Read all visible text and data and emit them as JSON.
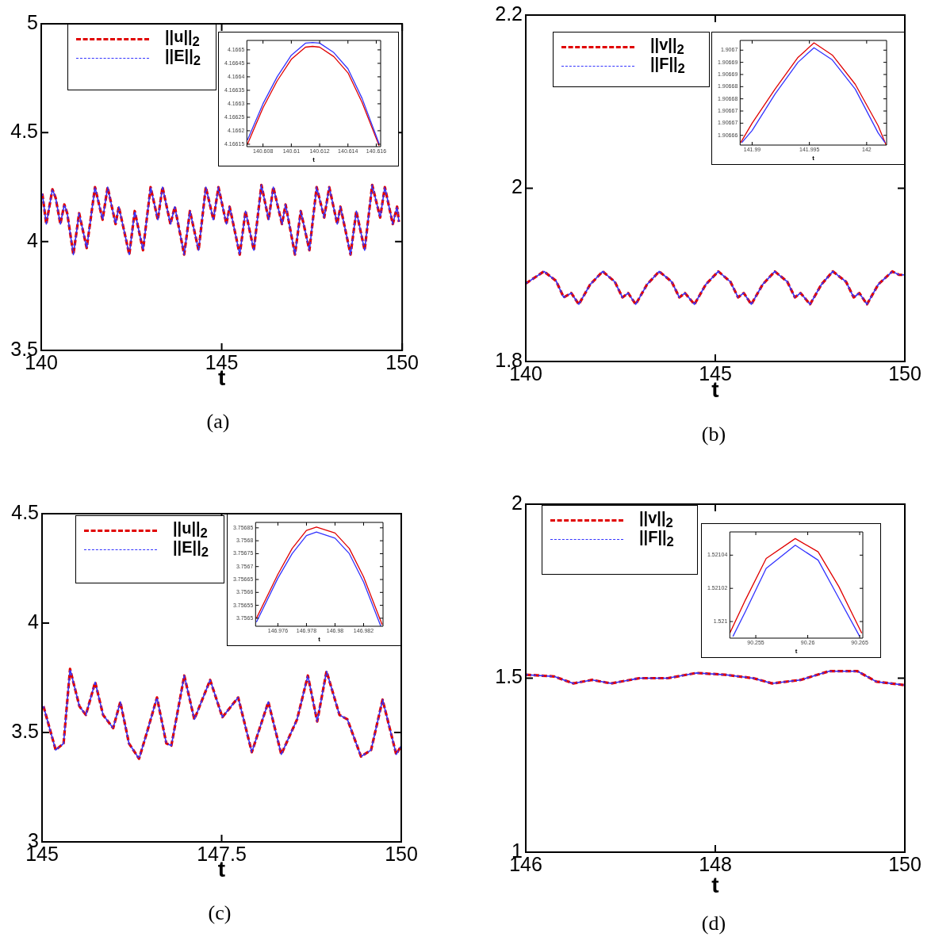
{
  "chart_data": [
    {
      "type": "line",
      "xlabel": "t",
      "annotations": [
        "(a)"
      ],
      "xlim": [
        140,
        150
      ],
      "ylim": [
        3.5,
        5
      ],
      "xticks": [
        140,
        145,
        150
      ],
      "yticks": [
        3.5,
        4,
        4.5,
        5
      ],
      "legend": "top left",
      "marker": "none",
      "series": [
        {
          "name": "||u||$_{2}$",
          "color": "#e00000",
          "line_style": "dashed",
          "x": [
            140.03,
            140.14,
            140.31,
            140.4,
            140.53,
            140.64,
            140.72,
            140.89,
            141.05,
            141.26,
            141.49,
            141.7,
            141.84,
            142.06,
            142.15,
            142.44,
            142.59,
            142.82,
            143.03,
            143.23,
            143.36,
            143.58,
            143.7,
            143.96,
            144.12,
            144.36,
            144.56,
            144.77,
            144.91,
            145.13,
            145.22,
            145.5,
            145.66,
            145.89,
            146.1,
            146.3,
            146.43,
            146.67,
            146.77,
            147.03,
            147.19,
            147.43,
            147.63,
            147.84,
            147.98,
            148.2,
            148.29,
            148.57,
            148.73,
            148.96,
            149.17,
            149.39,
            149.52,
            149.74,
            149.86,
            149.91
          ],
          "values": [
            4.22,
            4.08,
            4.24,
            4.2,
            4.08,
            4.17,
            4.13,
            3.94,
            4.13,
            3.97,
            4.25,
            4.1,
            4.25,
            4.08,
            4.16,
            3.94,
            4.14,
            3.96,
            4.25,
            4.1,
            4.25,
            4.08,
            4.16,
            3.94,
            4.14,
            3.96,
            4.25,
            4.1,
            4.25,
            4.08,
            4.16,
            3.94,
            4.14,
            3.96,
            4.26,
            4.1,
            4.25,
            4.08,
            4.17,
            3.94,
            4.14,
            3.96,
            4.25,
            4.11,
            4.25,
            4.08,
            4.16,
            3.94,
            4.14,
            3.96,
            4.26,
            4.11,
            4.25,
            4.08,
            4.16,
            4.09
          ]
        },
        {
          "name": "||E||$_{2}$",
          "color": "#3333ff",
          "line_style": "dashed",
          "x": [
            140.03,
            140.14,
            140.31,
            140.4,
            140.53,
            140.64,
            140.72,
            140.89,
            141.05,
            141.26,
            141.49,
            141.7,
            141.84,
            142.06,
            142.15,
            142.44,
            142.59,
            142.82,
            143.03,
            143.23,
            143.36,
            143.58,
            143.7,
            143.96,
            144.12,
            144.36,
            144.56,
            144.77,
            144.91,
            145.13,
            145.22,
            145.5,
            145.66,
            145.89,
            146.1,
            146.3,
            146.43,
            146.67,
            146.77,
            147.03,
            147.19,
            147.43,
            147.63,
            147.84,
            147.98,
            148.2,
            148.29,
            148.57,
            148.73,
            148.96,
            149.17,
            149.39,
            149.52,
            149.74,
            149.86,
            149.91
          ],
          "values": [
            4.22,
            4.08,
            4.24,
            4.2,
            4.08,
            4.17,
            4.13,
            3.94,
            4.13,
            3.97,
            4.25,
            4.1,
            4.25,
            4.08,
            4.16,
            3.94,
            4.14,
            3.96,
            4.25,
            4.1,
            4.25,
            4.08,
            4.16,
            3.94,
            4.14,
            3.96,
            4.25,
            4.1,
            4.25,
            4.08,
            4.16,
            3.94,
            4.14,
            3.96,
            4.26,
            4.1,
            4.25,
            4.08,
            4.17,
            3.94,
            4.14,
            3.96,
            4.25,
            4.11,
            4.25,
            4.08,
            4.16,
            3.94,
            4.14,
            3.96,
            4.26,
            4.11,
            4.25,
            4.08,
            4.16,
            4.09
          ]
        }
      ]
    },
    {
      "type": "line",
      "xlabel": "t",
      "xlim": [
        140.60686,
        140.61631
      ],
      "ylim": [
        4.166141,
        4.166535
      ],
      "xticks": [
        140.608,
        140.61,
        140.612,
        140.614,
        140.616
      ],
      "yticks": [
        4.16615,
        4.1662,
        4.16625,
        4.1663,
        4.16635,
        4.1664,
        4.16645,
        4.1665
      ],
      "marker": "none",
      "series": [
        {
          "color": "#e00000",
          "x": [
            140.6069,
            140.608,
            140.609,
            140.61,
            140.611,
            140.6115,
            140.612,
            140.613,
            140.614,
            140.615,
            140.6162
          ],
          "values": [
            4.16615,
            4.166285,
            4.166385,
            4.166465,
            4.16651,
            4.166513,
            4.16651,
            4.166475,
            4.166415,
            4.166305,
            4.166145
          ]
        },
        {
          "color": "#3333ff",
          "x": [
            140.6069,
            140.608,
            140.609,
            140.61,
            140.611,
            140.6115,
            140.612,
            140.613,
            140.614,
            140.615,
            140.6162
          ],
          "values": [
            4.166165,
            4.1663,
            4.1664,
            4.16648,
            4.166525,
            4.166527,
            4.166525,
            4.16649,
            4.16643,
            4.16632,
            4.166152
          ]
        }
      ]
    },
    {
      "type": "line",
      "xlabel": "t",
      "annotations": [
        "(b)"
      ],
      "xlim": [
        140,
        150
      ],
      "ylim": [
        1.8,
        2.2
      ],
      "xticks": [
        140,
        145,
        150
      ],
      "yticks": [
        1.8,
        2,
        2.2
      ],
      "legend": "top left",
      "marker": "none",
      "series": [
        {
          "name": "||v||$_{2}$",
          "color": "#e00000",
          "line_style": "dashed",
          "x": [
            140.0,
            140.48,
            140.8,
            141.0,
            141.2,
            141.4,
            141.7,
            142.03,
            142.35,
            142.55,
            142.7,
            142.9,
            143.2,
            143.52,
            143.85,
            144.05,
            144.2,
            144.45,
            144.75,
            145.08,
            145.4,
            145.6,
            145.75,
            145.95,
            146.25,
            146.57,
            146.9,
            147.1,
            147.25,
            147.5,
            147.8,
            148.1,
            148.45,
            148.65,
            148.8,
            149.0,
            149.3,
            149.67,
            149.85,
            150.0
          ],
          "values": [
            1.89,
            1.904,
            1.893,
            1.874,
            1.879,
            1.866,
            1.889,
            1.904,
            1.892,
            1.874,
            1.879,
            1.866,
            1.889,
            1.904,
            1.892,
            1.874,
            1.879,
            1.866,
            1.889,
            1.904,
            1.892,
            1.874,
            1.879,
            1.866,
            1.889,
            1.904,
            1.892,
            1.874,
            1.879,
            1.866,
            1.889,
            1.904,
            1.892,
            1.874,
            1.879,
            1.866,
            1.889,
            1.904,
            1.9,
            1.9
          ]
        },
        {
          "name": "||F||$_{2}$",
          "color": "#3333ff",
          "line_style": "dashed",
          "x": [
            140.0,
            140.48,
            140.8,
            141.0,
            141.2,
            141.4,
            141.7,
            142.03,
            142.35,
            142.55,
            142.7,
            142.9,
            143.2,
            143.52,
            143.85,
            144.05,
            144.2,
            144.45,
            144.75,
            145.08,
            145.4,
            145.6,
            145.75,
            145.95,
            146.25,
            146.57,
            146.9,
            147.1,
            147.25,
            147.5,
            147.8,
            148.1,
            148.45,
            148.65,
            148.8,
            149.0,
            149.3,
            149.67,
            149.85,
            150.0
          ],
          "values": [
            1.89,
            1.904,
            1.893,
            1.874,
            1.879,
            1.866,
            1.889,
            1.904,
            1.892,
            1.874,
            1.879,
            1.866,
            1.889,
            1.904,
            1.892,
            1.874,
            1.879,
            1.866,
            1.889,
            1.904,
            1.892,
            1.874,
            1.879,
            1.866,
            1.889,
            1.904,
            1.892,
            1.874,
            1.879,
            1.866,
            1.889,
            1.904,
            1.892,
            1.874,
            1.879,
            1.866,
            1.889,
            1.904,
            1.9,
            1.9
          ]
        }
      ]
    },
    {
      "type": "line",
      "xlabel": "t",
      "xlim": [
        141.98895,
        142.00174
      ],
      "ylim": [
        1.906661,
        1.906704
      ],
      "xticks": [
        141.99,
        141.995,
        142
      ],
      "yticks": [
        {
          "value": 1.906665,
          "label": "1.90666"
        },
        {
          "value": 1.90667,
          "label": "1.90667"
        },
        {
          "value": 1.906675,
          "label": "1.90667"
        },
        {
          "value": 1.90668,
          "label": "1.90668"
        },
        {
          "value": 1.906685,
          "label": "1.90668"
        },
        {
          "value": 1.90669,
          "label": "1.90669"
        },
        {
          "value": 1.906695,
          "label": "1.90669"
        },
        {
          "value": 1.9067,
          "label": "1.9067"
        }
      ],
      "marker": "none",
      "series": [
        {
          "color": "#e00000",
          "x": [
            141.989,
            141.99,
            141.992,
            141.994,
            141.9954,
            141.997,
            141.999,
            142.001,
            142.0017
          ],
          "values": [
            1.906662,
            1.90667,
            1.906684,
            1.906697,
            1.906703,
            1.906698,
            1.906686,
            1.906669,
            1.906661
          ]
        },
        {
          "color": "#3333ff",
          "x": [
            141.9891,
            141.99,
            141.992,
            141.994,
            141.9954,
            141.997,
            141.999,
            142.001,
            142.0016
          ],
          "values": [
            1.906662,
            1.906667,
            1.906682,
            1.906695,
            1.906701,
            1.906696,
            1.906684,
            1.906666,
            1.906662
          ]
        }
      ]
    },
    {
      "type": "line",
      "xlabel": "t",
      "annotations": [
        "(c)"
      ],
      "xlim": [
        145,
        150
      ],
      "ylim": [
        3,
        4.5
      ],
      "xticks": [
        145,
        147.5,
        150
      ],
      "yticks": [
        3,
        3.5,
        4,
        4.5
      ],
      "legend": "top left",
      "marker": "none",
      "series": [
        {
          "name": "||u||$_{2}$",
          "color": "#e00000",
          "line_style": "dashed",
          "x": [
            145.02,
            145.19,
            145.3,
            145.39,
            145.52,
            145.61,
            145.74,
            145.85,
            145.99,
            146.09,
            146.21,
            146.35,
            146.46,
            146.6,
            146.73,
            146.8,
            146.98,
            147.12,
            147.34,
            147.51,
            147.73,
            147.92,
            148.15,
            148.33,
            148.55,
            148.7,
            148.83,
            148.96,
            149.14,
            149.25,
            149.44,
            149.58,
            149.74,
            149.93,
            150.0
          ],
          "values": [
            3.62,
            3.42,
            3.45,
            3.79,
            3.62,
            3.58,
            3.73,
            3.58,
            3.52,
            3.64,
            3.45,
            3.38,
            3.5,
            3.66,
            3.45,
            3.44,
            3.76,
            3.56,
            3.74,
            3.57,
            3.66,
            3.41,
            3.64,
            3.4,
            3.56,
            3.76,
            3.55,
            3.78,
            3.58,
            3.56,
            3.39,
            3.42,
            3.65,
            3.4,
            3.44
          ]
        },
        {
          "name": "||E||$_{2}$",
          "color": "#3333ff",
          "line_style": "dashed",
          "x": [
            145.02,
            145.19,
            145.3,
            145.39,
            145.52,
            145.61,
            145.74,
            145.85,
            145.99,
            146.09,
            146.21,
            146.35,
            146.46,
            146.6,
            146.73,
            146.8,
            146.98,
            147.12,
            147.34,
            147.51,
            147.73,
            147.92,
            148.15,
            148.33,
            148.55,
            148.7,
            148.83,
            148.96,
            149.14,
            149.25,
            149.44,
            149.58,
            149.74,
            149.93,
            150.0
          ],
          "values": [
            3.62,
            3.42,
            3.45,
            3.79,
            3.62,
            3.58,
            3.73,
            3.58,
            3.52,
            3.64,
            3.45,
            3.38,
            3.5,
            3.66,
            3.45,
            3.44,
            3.76,
            3.56,
            3.74,
            3.57,
            3.66,
            3.41,
            3.64,
            3.4,
            3.56,
            3.76,
            3.55,
            3.78,
            3.58,
            3.56,
            3.39,
            3.42,
            3.65,
            3.4,
            3.44
          ]
        }
      ]
    },
    {
      "type": "line",
      "xlabel": "t",
      "xlim": [
        146.97444,
        146.98336
      ],
      "ylim": [
        3.756469,
        3.756871
      ],
      "xticks": [
        146.976,
        146.978,
        146.98,
        146.982
      ],
      "yticks": [
        3.7565,
        3.75655,
        3.7566,
        3.75665,
        3.7567,
        3.75675,
        3.7568,
        3.75685
      ],
      "marker": "none",
      "series": [
        {
          "color": "#e00000",
          "x": [
            146.9745,
            146.976,
            146.977,
            146.978,
            146.9787,
            146.98,
            146.981,
            146.982,
            146.9833
          ],
          "values": [
            3.7565,
            3.75667,
            3.75677,
            3.75684,
            3.756853,
            3.75683,
            3.75677,
            3.75666,
            3.756475
          ]
        },
        {
          "color": "#3333ff",
          "x": [
            146.9745,
            146.976,
            146.977,
            146.978,
            146.9787,
            146.98,
            146.981,
            146.982,
            146.9832
          ],
          "values": [
            3.756485,
            3.756655,
            3.75675,
            3.75682,
            3.756834,
            3.75681,
            3.75675,
            3.75664,
            3.75647
          ]
        }
      ]
    },
    {
      "type": "line",
      "xlabel": "t",
      "annotations": [
        "(d)"
      ],
      "xlim": [
        146,
        150
      ],
      "ylim": [
        1,
        2
      ],
      "xticks": [
        146,
        148,
        150
      ],
      "yticks": [
        1,
        1.5,
        2
      ],
      "legend": "top left",
      "marker": "none",
      "series": [
        {
          "name": "||v||$_{2}$",
          "color": "#e00000",
          "line_style": "dashed",
          "x": [
            146.0,
            146.3,
            146.5,
            146.7,
            146.9,
            147.2,
            147.5,
            147.8,
            148.1,
            148.4,
            148.6,
            148.9,
            149.2,
            149.5,
            149.7,
            150.0
          ],
          "values": [
            1.51,
            1.505,
            1.485,
            1.495,
            1.485,
            1.5,
            1.5,
            1.515,
            1.51,
            1.5,
            1.485,
            1.495,
            1.52,
            1.52,
            1.49,
            1.48
          ]
        },
        {
          "name": "||F||$_{2}$",
          "color": "#3333ff",
          "line_style": "dashed",
          "x": [
            146.0,
            146.3,
            146.5,
            146.7,
            146.9,
            147.2,
            147.5,
            147.8,
            148.1,
            148.4,
            148.6,
            148.9,
            149.2,
            149.5,
            149.7,
            150.0
          ],
          "values": [
            1.51,
            1.505,
            1.485,
            1.495,
            1.485,
            1.5,
            1.5,
            1.515,
            1.51,
            1.5,
            1.485,
            1.495,
            1.52,
            1.52,
            1.49,
            1.48
          ]
        }
      ]
    },
    {
      "type": "line",
      "xlabel": "t",
      "xlim": [
        90.2525,
        90.2653
      ],
      "ylim": [
        1.52099,
        1.521054
      ],
      "xticks": [
        90.255,
        90.26,
        90.265
      ],
      "yticks": [
        1.521,
        1.52102,
        1.52104
      ],
      "marker": "none",
      "series": [
        {
          "color": "#e00000",
          "x": [
            90.2525,
            90.254,
            90.256,
            90.2588,
            90.261,
            90.263,
            90.2652
          ],
          "values": [
            1.520993,
            1.521013,
            1.521038,
            1.52105,
            1.521042,
            1.521021,
            1.520993
          ]
        },
        {
          "color": "#3333ff",
          "x": [
            90.2528,
            90.254,
            90.256,
            90.2588,
            90.261,
            90.263,
            90.265
          ],
          "values": [
            1.520991,
            1.521006,
            1.521032,
            1.521046,
            1.521037,
            1.521014,
            1.520991
          ]
        }
      ]
    }
  ]
}
